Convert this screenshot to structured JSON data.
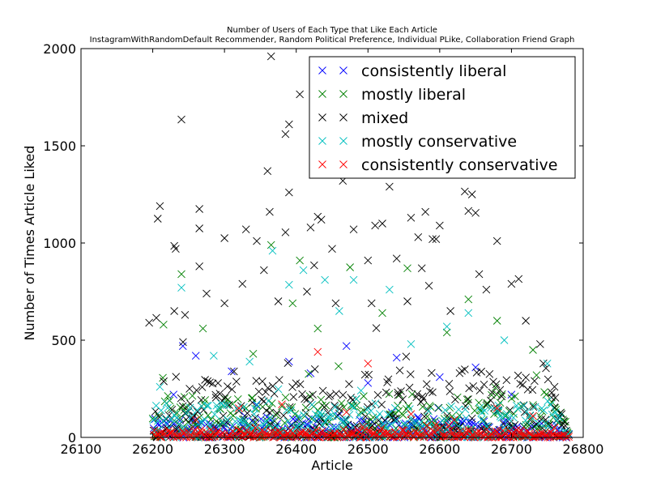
{
  "chart_data": {
    "type": "scatter",
    "title": "Number of Users of Each Type that Like Each Article",
    "subtitle": "InstagramWithRandomDefault Recommender, Random Political Preference, Individual PLike, Collaboration Friend Graph",
    "xlabel": "Article",
    "ylabel": "Number of Times Article Liked",
    "xlim": [
      26100,
      26800
    ],
    "ylim": [
      0,
      2000
    ],
    "xticks": [
      "26100",
      "26200",
      "26300",
      "26400",
      "26500",
      "26600",
      "26700",
      "26800"
    ],
    "yticks": [
      "0",
      "500",
      "1000",
      "1500",
      "2000"
    ],
    "grid": false,
    "legend_position": "top-right",
    "marker": "x",
    "article_range": [
      26200,
      26778
    ],
    "series": [
      {
        "name": "consistently liberal",
        "color": "#0000ff",
        "highlights": [
          [
            26242,
            470
          ],
          [
            26229,
            220
          ],
          [
            26260,
            420
          ],
          [
            26390,
            390
          ],
          [
            26420,
            330
          ],
          [
            26470,
            470
          ],
          [
            26540,
            410
          ],
          [
            26600,
            310
          ],
          [
            26650,
            360
          ],
          [
            26700,
            220
          ],
          [
            26310,
            340
          ],
          [
            26500,
            280
          ]
        ]
      },
      {
        "name": "mostly liberal",
        "color": "#008000",
        "highlights": [
          [
            26240,
            840
          ],
          [
            26365,
            990
          ],
          [
            26395,
            690
          ],
          [
            26405,
            910
          ],
          [
            26475,
            875
          ],
          [
            26555,
            870
          ],
          [
            26215,
            580
          ],
          [
            26270,
            560
          ],
          [
            26340,
            430
          ],
          [
            26430,
            560
          ],
          [
            26520,
            640
          ],
          [
            26640,
            710
          ],
          [
            26680,
            600
          ],
          [
            26730,
            450
          ],
          [
            26610,
            540
          ]
        ]
      },
      {
        "name": "mixed",
        "color": "#000000",
        "highlights": [
          [
            26365,
            1960
          ],
          [
            26405,
            1765
          ],
          [
            26240,
            1635
          ],
          [
            26390,
            1610
          ],
          [
            26385,
            1560
          ],
          [
            26360,
            1370
          ],
          [
            26390,
            1260
          ],
          [
            26465,
            1320
          ],
          [
            26530,
            1290
          ],
          [
            26210,
            1190
          ],
          [
            26207,
            1125
          ],
          [
            26265,
            1175
          ],
          [
            26363,
            1160
          ],
          [
            26430,
            1135
          ],
          [
            26435,
            1120
          ],
          [
            26265,
            1075
          ],
          [
            26300,
            1025
          ],
          [
            26480,
            1070
          ],
          [
            26510,
            1090
          ],
          [
            26520,
            1100
          ],
          [
            26560,
            1130
          ],
          [
            26580,
            1160
          ],
          [
            26635,
            1265
          ],
          [
            26645,
            1250
          ],
          [
            26640,
            1165
          ],
          [
            26650,
            1155
          ],
          [
            26680,
            1010
          ],
          [
            26600,
            1090
          ],
          [
            26590,
            1020
          ],
          [
            26230,
            985
          ],
          [
            26232,
            970
          ],
          [
            26345,
            1010
          ],
          [
            26330,
            1070
          ],
          [
            26385,
            1055
          ],
          [
            26420,
            1080
          ],
          [
            26450,
            970
          ],
          [
            26500,
            910
          ],
          [
            26540,
            920
          ],
          [
            26570,
            1030
          ],
          [
            26595,
            1020
          ],
          [
            26265,
            880
          ],
          [
            26325,
            790
          ],
          [
            26355,
            860
          ],
          [
            26425,
            885
          ],
          [
            26575,
            870
          ],
          [
            26585,
            780
          ],
          [
            26655,
            840
          ],
          [
            26700,
            790
          ],
          [
            26710,
            815
          ],
          [
            26195,
            590
          ],
          [
            26205,
            615
          ],
          [
            26230,
            650
          ],
          [
            26245,
            630
          ],
          [
            26275,
            740
          ],
          [
            26300,
            690
          ],
          [
            26375,
            700
          ],
          [
            26415,
            750
          ],
          [
            26455,
            690
          ],
          [
            26505,
            690
          ],
          [
            26555,
            700
          ],
          [
            26615,
            650
          ],
          [
            26665,
            760
          ],
          [
            26720,
            600
          ],
          [
            26740,
            480
          ],
          [
            26760,
            260
          ],
          [
            26770,
            120
          ],
          [
            26775,
            60
          ]
        ]
      },
      {
        "name": "mostly conservative",
        "color": "#00bfbf",
        "highlights": [
          [
            26240,
            770
          ],
          [
            26367,
            960
          ],
          [
            26390,
            785
          ],
          [
            26440,
            810
          ],
          [
            26480,
            810
          ],
          [
            26530,
            760
          ],
          [
            26210,
            260
          ],
          [
            26285,
            420
          ],
          [
            26335,
            390
          ],
          [
            26410,
            860
          ],
          [
            26460,
            650
          ],
          [
            26610,
            570
          ],
          [
            26640,
            640
          ],
          [
            26690,
            500
          ],
          [
            26750,
            380
          ],
          [
            26560,
            480
          ]
        ]
      },
      {
        "name": "consistently conservative",
        "color": "#ff0000",
        "highlights": [
          [
            26260,
            90
          ],
          [
            26320,
            150
          ],
          [
            26380,
            170
          ],
          [
            26430,
            440
          ],
          [
            26470,
            130
          ],
          [
            26500,
            380
          ],
          [
            26560,
            120
          ],
          [
            26620,
            90
          ],
          [
            26680,
            150
          ],
          [
            26730,
            110
          ],
          [
            26760,
            50
          ]
        ]
      }
    ]
  }
}
